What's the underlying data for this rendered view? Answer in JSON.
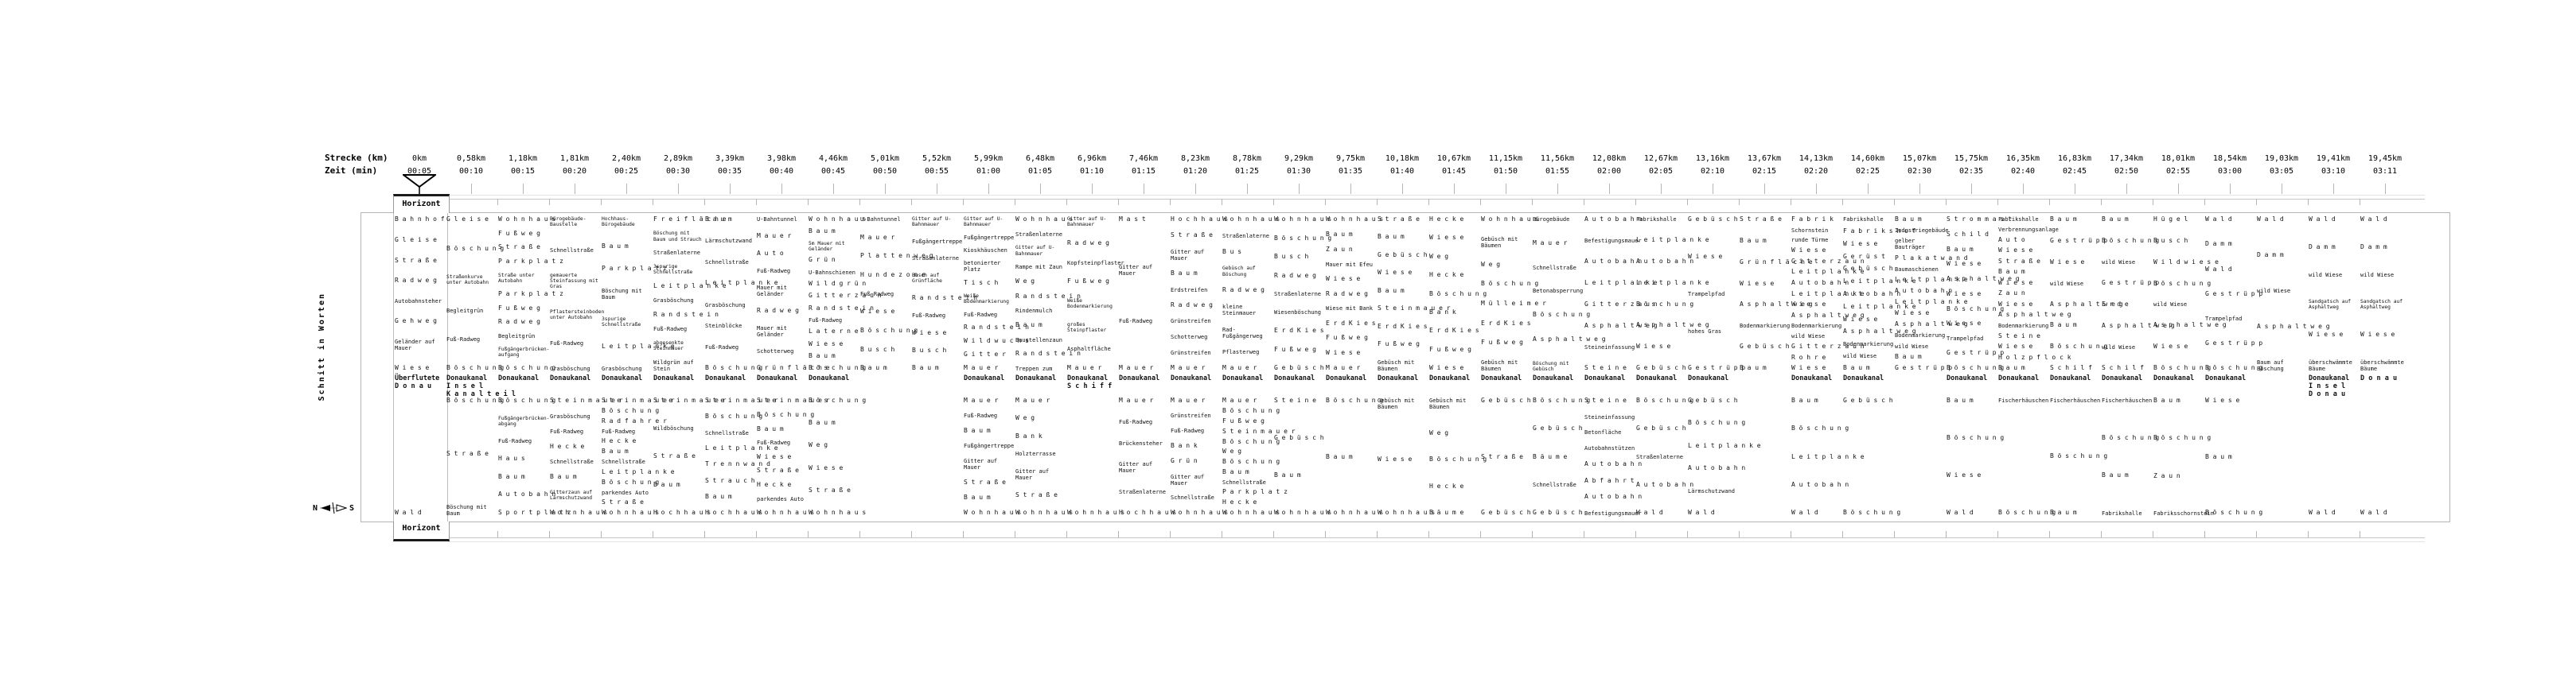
{
  "header": {
    "strecke_label": "Strecke (km)",
    "zeit_label": "Zeit (min)"
  },
  "axis_label": "Schnitt in Worten",
  "horizont": {
    "top_label": "Horizont",
    "bottom_label": "Horizont"
  },
  "compass": {
    "n": "N",
    "s": "S"
  },
  "icons": [
    "viewer-funnel-icon",
    "compass-needle-icon"
  ],
  "colors": {
    "background": "#ffffff",
    "text": "#000000",
    "line": "#b5b5b5"
  },
  "bold_words": [
    "Donaukanal",
    "Donau",
    "Insel",
    "Kanalteil",
    "Überflutete",
    "Schiff"
  ],
  "stations": [
    {
      "km": "0km",
      "time": "00:05"
    },
    {
      "km": "0,58km",
      "time": "00:10"
    },
    {
      "km": "1,18km",
      "time": "00:15"
    },
    {
      "km": "1,81km",
      "time": "00:20"
    },
    {
      "km": "2,40km",
      "time": "00:25"
    },
    {
      "km": "2,89km",
      "time": "00:30"
    },
    {
      "km": "3,39km",
      "time": "00:35"
    },
    {
      "km": "3,98km",
      "time": "00:40"
    },
    {
      "km": "4,46km",
      "time": "00:45"
    },
    {
      "km": "5,01km",
      "time": "00:50"
    },
    {
      "km": "5,52km",
      "time": "00:55"
    },
    {
      "km": "5,99km",
      "time": "01:00"
    },
    {
      "km": "6,48km",
      "time": "01:05"
    },
    {
      "km": "6,96km",
      "time": "01:10"
    },
    {
      "km": "7,46km",
      "time": "01:15"
    },
    {
      "km": "8,23km",
      "time": "01:20"
    },
    {
      "km": "8,78km",
      "time": "01:25"
    },
    {
      "km": "9,29km",
      "time": "01:30"
    },
    {
      "km": "9,75km",
      "time": "01:35"
    },
    {
      "km": "10,18km",
      "time": "01:40"
    },
    {
      "km": "10,67km",
      "time": "01:45"
    },
    {
      "km": "11,15km",
      "time": "01:50"
    },
    {
      "km": "11,56km",
      "time": "01:55"
    },
    {
      "km": "12,08km",
      "time": "02:00"
    },
    {
      "km": "12,67km",
      "time": "02:05"
    },
    {
      "km": "13,16km",
      "time": "02:10"
    },
    {
      "km": "13,67km",
      "time": "02:15"
    },
    {
      "km": "14,13km",
      "time": "02:20"
    },
    {
      "km": "14,60km",
      "time": "02:25"
    },
    {
      "km": "15,07km",
      "time": "02:30"
    },
    {
      "km": "15,75km",
      "time": "02:35"
    },
    {
      "km": "16,35km",
      "time": "02:40"
    },
    {
      "km": "16,83km",
      "time": "02:45"
    },
    {
      "km": "17,34km",
      "time": "02:50"
    },
    {
      "km": "18,01km",
      "time": "02:55"
    },
    {
      "km": "18,54km",
      "time": "03:00"
    },
    {
      "km": "19,03km",
      "time": "03:05"
    },
    {
      "km": "19,41km",
      "time": "03:10"
    },
    {
      "km": "19,45km",
      "time": "03:11"
    }
  ],
  "columns": [
    {
      "above": [
        "Bahnhof",
        "Gleise",
        "Straße",
        "Radweg",
        "Autobahnsteher",
        "Gehweg",
        "Geländer auf Mauer",
        "Wiese"
      ],
      "canal": [
        "Überflutete",
        "Donau"
      ],
      "below": [
        "Wald"
      ]
    },
    {
      "above": [
        "Gleise",
        "Böschung",
        "Straßenkurve unter Autobahn",
        "Begleitgrün",
        "Fuß-Radweg",
        "Böschung"
      ],
      "canal": [
        "Donaukanal",
        "Insel",
        "Kanalteil"
      ],
      "below": [
        "Böschung",
        "Straße",
        "Böschung mit Baum"
      ]
    },
    {
      "above": [
        "Wohnhaus",
        "Fußweg",
        "Straße",
        "Parkplatz",
        "Straße unter Autobahn",
        "Parkplatz",
        "Fußweg",
        "Radweg",
        "Begleitgrün",
        "Fußgängerbrücken-aufgang",
        "Böschung"
      ],
      "canal": [
        "Donaukanal"
      ],
      "below": [
        "Böschung",
        "Fußgängerbrücken-abgang",
        "Fuß-Radweg",
        "Haus",
        "Baum",
        "Autobahn",
        "Sportplatz"
      ]
    },
    {
      "above": [
        "Bürogebäude-Baustelle",
        "Schnellstraße",
        "gemauerte Steinfassung mit Gras",
        "Pflastersteinboden unter Autobahn",
        "Fuß-Radweg",
        "Grasböschung"
      ],
      "canal": [
        "Donaukanal"
      ],
      "below": [
        "Steinmauer",
        "Grasböschung",
        "Fuß-Radweg",
        "Hecke",
        "Schnellstraße",
        "Baum",
        "Gitterzaun auf Lärmschutzwand",
        "Wohnhaus"
      ]
    },
    {
      "above": [
        "Hochhaus-Bürogebäude",
        "Baum",
        "Parkplatz",
        "Böschung mit Baum",
        "3spurige Schnellstraße",
        "Leitplanke",
        "Grasböschung"
      ],
      "canal": [
        "Donaukanal"
      ],
      "below": [
        "Steinmauer",
        "Böschung",
        "Radfahrer",
        "Fuß-Radweg",
        "Hecke",
        "Baum",
        "Schnellstraße",
        "Leitplanke",
        "Böschung",
        "parkendes Auto",
        "Straße",
        "Wohnhaus"
      ]
    },
    {
      "above": [
        "Freifläche",
        "Böschung mit Baum und Strauch",
        "Straßenlaterne",
        "3spurige Schnellstraße",
        "Leitplanke",
        "Grasböschung",
        "Randstein",
        "Fuß-Radweg",
        "abgesenkte Steinmauer",
        "Wildgrün auf Stein"
      ],
      "canal": [
        "Donaukanal"
      ],
      "below": [
        "Steinmauer",
        "Wildböschung",
        "Straße",
        "Baum",
        "Hochhaus"
      ]
    },
    {
      "above": [
        "Baum",
        "Lärmschutzwand",
        "Schnellstraße",
        "Leitplanke",
        "Grasböschung",
        "Steinblöcke",
        "Fuß-Radweg",
        "Böschung"
      ],
      "canal": [
        "Donaukanal"
      ],
      "below": [
        "Steinmauer",
        "Böschung",
        "Schnellstraße",
        "Leitplanke",
        "Trennwand",
        "Strauch",
        "Baum",
        "Hochhaus"
      ]
    },
    {
      "above": [
        "U-Bahntunnel",
        "Mauer",
        "Auto",
        "Fuß-Radweg",
        "Mauer mit Geländer",
        "Radweg",
        "Mauer mit Geländer",
        "Schotterweg",
        "Grünfläche"
      ],
      "canal": [
        "Donaukanal"
      ],
      "below": [
        "Steinmauer",
        "Böschung",
        "Baum",
        "Fuß-Radweg",
        "Wiese",
        "Straße",
        "Hecke",
        "parkendes Auto",
        "Wohnhaus"
      ]
    },
    {
      "above": [
        "Wohnhaus",
        "Baum",
        "5m Mauer mit Geländer",
        "Grün",
        "U-Bahnschienen",
        "Wildgrün",
        "Gitterzaun",
        "Randstein",
        "Fuß-Radweg",
        "Laterne",
        "Wiese",
        "Baum",
        "Böschung"
      ],
      "canal": [
        "Donaukanal"
      ],
      "below": [
        "Böschung",
        "Baum",
        "Weg",
        "Wiese",
        "Straße",
        "Wohnhaus"
      ]
    },
    {
      "above": [
        "U-Bahntunnel",
        "Mauer",
        "Plattenweg",
        "Hundezone",
        "Fuß-Radweg",
        "Wiese",
        "Böschung",
        "Busch",
        "Baum"
      ],
      "canal": [],
      "below": []
    },
    {
      "above": [
        "Gitter auf U-Bahnmauer",
        "Fußgängertreppe",
        "Straßenlaterne",
        "Busch auf Grünfläche",
        "Randstein",
        "Fuß-Radweg",
        "Wiese",
        "Busch",
        "Baum"
      ],
      "canal": [],
      "below": []
    },
    {
      "above": [
        "Gitter auf U-Bahnmauer",
        "Fußgängertreppe",
        "Kioskhäuschen",
        "betonierter Platz",
        "Tisch",
        "Weiße Bodenmarkierung",
        "Fuß-Radweg",
        "Randstein",
        "Wildwuchs",
        "Gitter",
        "Mauer"
      ],
      "canal": [
        "Donaukanal"
      ],
      "below": [
        "Mauer",
        "Fuß-Radweg",
        "Baum",
        "Fußgängertreppe",
        "Gitter auf Mauer",
        "Straße",
        "Baum",
        "Wohnhaus"
      ]
    },
    {
      "above": [
        "Wohnhaus",
        "Straßenlaterne",
        "Gitter auf U-Bahnmauer",
        "Rampe mit Zaun",
        "Weg",
        "Randstein",
        "Rindenmulch",
        "Baum",
        "Baustellenzaun",
        "Randstein",
        "Treppen zum"
      ],
      "canal": [
        "Donaukanal"
      ],
      "below": [
        "Mauer",
        "Weg",
        "Bank",
        "Holzterrasse",
        "Gitter auf Mauer",
        "Straße",
        "Wohnhaus"
      ]
    },
    {
      "above": [
        "Gitter auf U-Bahnmauer",
        "Radweg",
        "Kopfsteinpflaster",
        "Fußweg",
        "Weiße Bodenmarkierung",
        "großes Steinpflaster",
        "Asphaltfläche",
        "Mauer"
      ],
      "canal": [
        "Donaukanal",
        "Schiff"
      ],
      "below": [
        "Wohnhaus"
      ]
    },
    {
      "above": [
        "Mast",
        "Gitter auf Mauer",
        "Fuß-Radweg",
        "Mauer"
      ],
      "canal": [
        "Donaukanal"
      ],
      "below": [
        "Mauer",
        "Fuß-Radweg",
        "Brückensteher",
        "Gitter auf Mauer",
        "Straßenlaterne",
        "Hochhaus"
      ]
    },
    {
      "above": [
        "Hochhaus",
        "Straße",
        "Gitter auf Mauer",
        "Baum",
        "Erdstreifen",
        "Radweg",
        "Grünstreifen",
        "Schotterweg",
        "Grünstreifen",
        "Mauer"
      ],
      "canal": [
        "Donaukanal"
      ],
      "below": [
        "Mauer",
        "Grünstreifen",
        "Fuß-Radweg",
        "Bank",
        "Grün",
        "Gitter auf Mauer",
        "Schnellstraße",
        "Wohnhaus"
      ]
    },
    {
      "above": [
        "Wohnhaus",
        "Straßenlaterne",
        "Bus",
        "Gebüsch auf Böschung",
        "Radweg",
        "kleine Steinmauer",
        "Rad- Fußgängerweg",
        "Pflasterweg",
        "Mauer"
      ],
      "canal": [
        "Donaukanal"
      ],
      "below": [
        "Mauer",
        "Böschung",
        "Fußweg",
        "Steinmauer",
        "Böschung",
        "Weg",
        "Böschung",
        "Baum",
        "Schnellstraße",
        "Parkplatz",
        "Hecke",
        "Wohnhaus"
      ]
    },
    {
      "above": [
        "Wohnhaus",
        "Böschung",
        "Busch",
        "Radweg",
        "Straßenlaterne",
        "Wiesenböschung",
        "ErdKies",
        "Fußweg",
        "Gebüsch"
      ],
      "canal": [
        "Donaukanal"
      ],
      "below": [
        "Steine",
        "Gebüsch",
        "Baum",
        "Wohnhaus"
      ]
    },
    {
      "above": [
        "Wohnhaus",
        "Baum",
        "Zaun",
        "Mauer mit Efeu",
        "Wiese",
        "Radweg",
        "Wiese mit Bank",
        "ErdKies",
        "Fußweg",
        "Wiese",
        "Mauer"
      ],
      "canal": [
        "Donaukanal"
      ],
      "below": [
        "Böschung",
        "Baum",
        "Wohnhaus"
      ]
    },
    {
      "above": [
        "Straße",
        "Baum",
        "Gebüsch",
        "Wiese",
        "Baum",
        "Steinmauer",
        "ErdKies",
        "Fußweg",
        "Gebüsch mit Bäumen"
      ],
      "canal": [
        "Donaukanal"
      ],
      "below": [
        "Gebüsch mit Bäumen",
        "Wiese",
        "Wohnhaus"
      ]
    },
    {
      "above": [
        "Hecke",
        "Wiese",
        "Weg",
        "Hecke",
        "Böschung",
        "Bank",
        "ErdKies",
        "Fußweg",
        "Wiese"
      ],
      "canal": [
        "Donaukanal"
      ],
      "below": [
        "Gebüsch mit Bäumen",
        "Weg",
        "Böschung",
        "Hecke",
        "Bäume"
      ]
    },
    {
      "above": [
        "Wohnhaus",
        "Gebüsch mit Bäumen",
        "Weg",
        "Böschung",
        "Mülleimer",
        "ErdKies",
        "Fußweg",
        "Gebüsch mit Bäumen"
      ],
      "canal": [
        "Donaukanal"
      ],
      "below": [
        "Gebüsch",
        "Straße",
        "Gebüsch"
      ]
    },
    {
      "above": [
        "Bürogebäude",
        "Mauer",
        "Schnellstraße",
        "Betonabsperrung",
        "Böschung",
        "Asphaltweg",
        "Böschung mit Gebüsch"
      ],
      "canal": [
        "Donaukanal"
      ],
      "below": [
        "Böschung",
        "Gebüsch",
        "Bäume",
        "Schnellstraße",
        "Gebüsch"
      ]
    },
    {
      "above": [
        "Autobahn",
        "Befestigungsmauer",
        "Autobahn",
        "Leitplanke",
        "Gitterzaun",
        "Asphaltweg",
        "Steineinfassung",
        "Steine"
      ],
      "canal": [
        "Donaukanal"
      ],
      "below": [
        "Steine",
        "Steineinfassung",
        "Betonfläche",
        "Autobahnstützen",
        "Autobahn",
        "Abfahrt",
        "Autobahn",
        "Befestigungsmauer"
      ]
    },
    {
      "above": [
        "Fabrikshalle",
        "Leitplanke",
        "Autobahn",
        "Leitplanke",
        "Böschung",
        "Asphaltweg",
        "Wiese",
        "Gebüsch"
      ],
      "canal": [
        "Donaukanal"
      ],
      "below": [
        "Böschung",
        "Gebüsch",
        "Straßenlaterne",
        "Autobahn",
        "Wald"
      ]
    },
    {
      "above": [
        "Gebüsch",
        "Wiese",
        "Trampelpfad",
        "hohes Gras",
        "Gestrüpp"
      ],
      "canal": [
        "Donaukanal"
      ],
      "below": [
        "Gebüsch",
        "Böschung",
        "Leitplanke",
        "Autobahn",
        "Lärmschutzwand",
        "Wald"
      ]
    },
    {
      "above": [
        "Straße",
        "Baum",
        "Grünfläche",
        "Wiese",
        "Asphaltweg",
        "Bodenmarkierung",
        "Gebüsch",
        "Baum"
      ],
      "canal": [],
      "below": []
    },
    {
      "above": [
        "Fabrik",
        "Schornstein",
        "runde Türme",
        "Wiese",
        "Gitterzaun",
        "Leitplanke",
        "Autobahn",
        "Leitplanke",
        "Wiese",
        "Asphaltweg",
        "Bodenmarkierung",
        "wild Wiese",
        "Gitterzaun",
        "Rohre",
        "Wiese"
      ],
      "canal": [
        "Donaukanal"
      ],
      "below": [
        "Baum",
        "Böschung",
        "Leitplanke",
        "Autobahn",
        "Wald"
      ]
    },
    {
      "above": [
        "Fabrikshalle",
        "Fabrikshof",
        "Wiese",
        "Gerüst",
        "Gebüsch",
        "Leitplanke",
        "Autobahn",
        "Leitplanke",
        "Wiese",
        "Asphaltweg",
        "Bodenmarkierung",
        "wild Wiese",
        "Baum"
      ],
      "canal": [
        "Donaukanal"
      ],
      "below": [
        "Gebüsch",
        "Böschung"
      ]
    },
    {
      "above": [
        "Baum",
        "Industriegebäude",
        "gelber Bauträger",
        "Plakatwand",
        "Baumaschienen",
        "Leitplanke",
        "Autobahn",
        "Leitplanke",
        "Wiese",
        "Asphaltweg",
        "Bodenmarkierung",
        "wild Wiese",
        "Baum",
        "Gestrüpp"
      ],
      "canal": [],
      "below": []
    },
    {
      "above": [
        "Strommast",
        "Schild",
        "Baum",
        "Wiese",
        "Asphaltweg",
        "Wiese",
        "Böschung",
        "Wiese",
        "Trampelpfad",
        "Gestrüpp",
        "Böschung"
      ],
      "canal": [
        "Donaukanal"
      ],
      "below": [
        "Baum",
        "Böschung",
        "Wiese",
        "Wald"
      ]
    },
    {
      "above": [
        "Fabrikshalle",
        "Verbrennungsanlage",
        "Auto",
        "Wiese",
        "Straße",
        "Baum",
        "Wiese",
        "Zaun",
        "Wiese",
        "Asphaltweg",
        "Bodenmarkierung",
        "Steine",
        "Wiese",
        "Holzpflock",
        "Baum"
      ],
      "canal": [
        "Donaukanal"
      ],
      "below": [
        "Fischerhäuschen",
        "Böschung"
      ]
    },
    {
      "above": [
        "Baum",
        "Gestrüpp",
        "Wiese",
        "wild Wiese",
        "Asphaltweg",
        "Baum",
        "Böschung",
        "Schilf"
      ],
      "canal": [
        "Donaukanal"
      ],
      "below": [
        "Fischerhäuschen",
        "Böschung",
        "Baum"
      ]
    },
    {
      "above": [
        "Baum",
        "Böschung",
        "wild Wiese",
        "Gestrüpp",
        "Erde",
        "Asphaltweg",
        "wild Wiese",
        "Schilf"
      ],
      "canal": [
        "Donaukanal"
      ],
      "below": [
        "Fischerhäuschen",
        "Böschung",
        "Baum",
        "Fabrikshalle"
      ]
    },
    {
      "above": [
        "Hügel",
        "Busch",
        "Wildwiese",
        "Böschung",
        "wild Wiese",
        "Asphaltweg",
        "Wiese",
        "Böschung"
      ],
      "canal": [
        "Donaukanal"
      ],
      "below": [
        "Baum",
        "Böschung",
        "Zaun",
        "Fabriksschornstein"
      ]
    },
    {
      "above": [
        "Wald",
        "Damm",
        "Wald",
        "Gestrüpp",
        "Trampelpfad",
        "Gestrüpp",
        "Böschung"
      ],
      "canal": [
        "Donaukanal"
      ],
      "below": [
        "Wiese",
        "Baum",
        "Böschung"
      ]
    },
    {
      "above": [
        "Wald",
        "Damm",
        "wild Wiese",
        "Asphaltweg",
        "Baum auf Böschung"
      ],
      "canal": [],
      "below": []
    },
    {
      "above": [
        "Wald",
        "Damm",
        "wild Wiese",
        "Sandgatsch auf Asphaltweg",
        "Wiese",
        "überschwämmte Bäume"
      ],
      "canal": [
        "Donaukanal",
        "Insel",
        "Donau"
      ],
      "below": [
        "Wald"
      ]
    },
    {
      "above": [
        "Wald",
        "Damm",
        "wild Wiese",
        "Sandgatsch auf Asphaltweg",
        "Wiese",
        "überschwämmte Bäume"
      ],
      "canal": [
        "Donau"
      ],
      "below": [
        "Wald"
      ]
    }
  ]
}
